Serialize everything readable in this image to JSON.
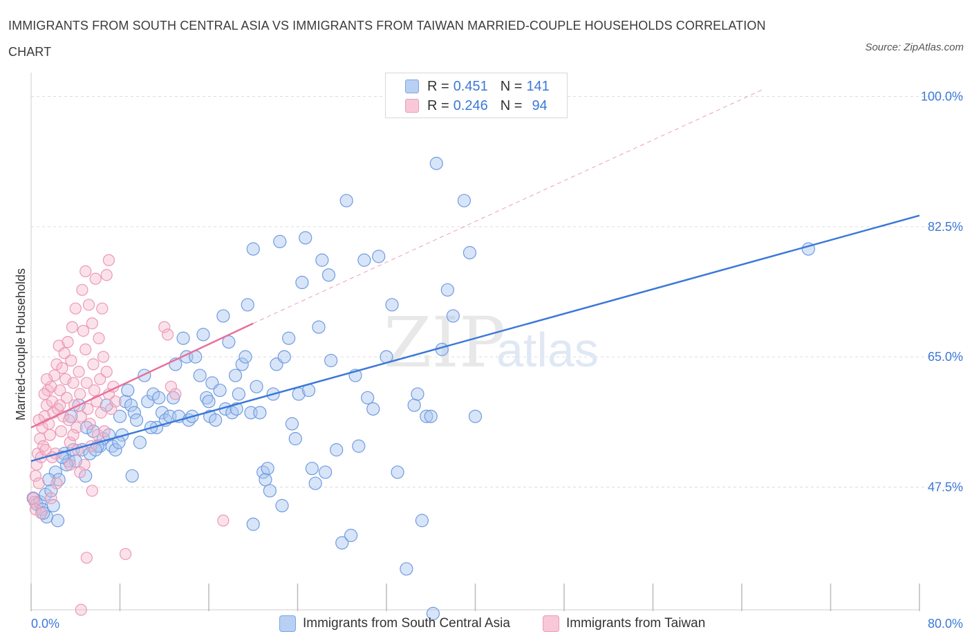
{
  "title": "IMMIGRANTS FROM SOUTH CENTRAL ASIA VS IMMIGRANTS FROM TAIWAN MARRIED-COUPLE HOUSEHOLDS CORRELATION CHART",
  "source": "Source: ZipAtlas.com",
  "watermark": {
    "zip": "ZIP",
    "atlas": "atlas"
  },
  "legend": {
    "r_label": "R =",
    "n_label": "N =",
    "items": [
      {
        "r": "0.451",
        "n": "141",
        "color": "#a8c6f0"
      },
      {
        "r": "0.246",
        "n": "94",
        "color": "#f5b6ca"
      }
    ]
  },
  "series_names": [
    "Immigrants from South Central Asia",
    "Immigrants from Taiwan"
  ],
  "colors": {
    "blue": "#3b78d8",
    "blue_fill": "#a8c6f0",
    "pink": "#e8709a",
    "pink_fill": "#f5b6ca"
  },
  "chart_data": {
    "type": "scatter",
    "xlabel": "",
    "ylabel": "Married-couple Households",
    "xlim": [
      0,
      80
    ],
    "ylim": [
      31,
      102
    ],
    "x_tick_labels": [
      "0.0%",
      "80.0%"
    ],
    "y_ticks": [
      47.5,
      65.0,
      82.5,
      100.0
    ],
    "y_tick_labels": [
      "47.5%",
      "65.0%",
      "82.5%",
      "100.0%"
    ],
    "grid": true,
    "series": [
      {
        "name": "Immigrants from South Central Asia",
        "color": "#3b78d8",
        "trend": [
          [
            0,
            51.0
          ],
          [
            80,
            84.0
          ]
        ],
        "points": [
          [
            0.2,
            46.0
          ],
          [
            0.5,
            45.2
          ],
          [
            0.8,
            45.5
          ],
          [
            1.0,
            44.5
          ],
          [
            1.3,
            46.5
          ],
          [
            1.4,
            43.5
          ],
          [
            1.8,
            47.0
          ],
          [
            2.0,
            45.0
          ],
          [
            2.2,
            49.5
          ],
          [
            2.5,
            48.5
          ],
          [
            3.0,
            52.0
          ],
          [
            3.4,
            51.0
          ],
          [
            3.8,
            52.5
          ],
          [
            4.0,
            51.0
          ],
          [
            4.3,
            58.5
          ],
          [
            4.6,
            52.5
          ],
          [
            5.0,
            55.5
          ],
          [
            5.3,
            52.0
          ],
          [
            5.6,
            55.0
          ],
          [
            6.2,
            53.0
          ],
          [
            6.5,
            54.0
          ],
          [
            6.8,
            58.5
          ],
          [
            7.0,
            54.5
          ],
          [
            7.3,
            53.0
          ],
          [
            7.6,
            52.5
          ],
          [
            8.0,
            57.0
          ],
          [
            8.5,
            59.0
          ],
          [
            8.7,
            60.5
          ],
          [
            9.0,
            58.5
          ],
          [
            9.3,
            57.5
          ],
          [
            9.5,
            56.5
          ],
          [
            9.8,
            53.5
          ],
          [
            10.2,
            62.5
          ],
          [
            10.5,
            59.0
          ],
          [
            11.0,
            60.0
          ],
          [
            11.3,
            55.5
          ],
          [
            11.8,
            57.5
          ],
          [
            12.1,
            56.5
          ],
          [
            12.5,
            57.0
          ],
          [
            13.0,
            64.0
          ],
          [
            13.3,
            57.0
          ],
          [
            13.7,
            67.5
          ],
          [
            14.0,
            65.0
          ],
          [
            14.2,
            56.5
          ],
          [
            14.5,
            57.0
          ],
          [
            14.8,
            65.0
          ],
          [
            15.2,
            62.5
          ],
          [
            15.5,
            68.0
          ],
          [
            15.8,
            59.5
          ],
          [
            16.1,
            57.0
          ],
          [
            16.3,
            61.5
          ],
          [
            16.6,
            56.5
          ],
          [
            17.0,
            60.5
          ],
          [
            17.3,
            70.5
          ],
          [
            17.5,
            58.0
          ],
          [
            17.8,
            67.0
          ],
          [
            18.1,
            57.5
          ],
          [
            18.4,
            62.5
          ],
          [
            18.7,
            60.0
          ],
          [
            19.0,
            64.0
          ],
          [
            19.3,
            65.0
          ],
          [
            19.5,
            72.0
          ],
          [
            19.8,
            57.5
          ],
          [
            20.0,
            79.5
          ],
          [
            20.3,
            61.0
          ],
          [
            20.6,
            57.5
          ],
          [
            20.9,
            49.5
          ],
          [
            21.1,
            48.5
          ],
          [
            21.3,
            50.0
          ],
          [
            21.5,
            47.0
          ],
          [
            21.8,
            60.0
          ],
          [
            22.1,
            64.0
          ],
          [
            22.4,
            80.5
          ],
          [
            22.6,
            45.0
          ],
          [
            22.8,
            65.0
          ],
          [
            23.2,
            67.5
          ],
          [
            23.5,
            56.0
          ],
          [
            23.8,
            54.0
          ],
          [
            24.1,
            60.0
          ],
          [
            24.4,
            75.0
          ],
          [
            24.7,
            81.0
          ],
          [
            25.0,
            60.5
          ],
          [
            25.3,
            50.0
          ],
          [
            25.6,
            48.0
          ],
          [
            25.9,
            69.0
          ],
          [
            26.2,
            78.0
          ],
          [
            26.5,
            49.5
          ],
          [
            26.8,
            76.0
          ],
          [
            27.0,
            64.5
          ],
          [
            27.5,
            52.5
          ],
          [
            28.0,
            40.0
          ],
          [
            28.4,
            86.0
          ],
          [
            28.8,
            41.0
          ],
          [
            29.2,
            62.5
          ],
          [
            29.5,
            53.0
          ],
          [
            30.0,
            78.0
          ],
          [
            30.3,
            59.5
          ],
          [
            30.8,
            58.0
          ],
          [
            31.3,
            78.5
          ],
          [
            32.0,
            65.0
          ],
          [
            32.5,
            72.0
          ],
          [
            33.0,
            49.5
          ],
          [
            33.8,
            36.5
          ],
          [
            34.5,
            58.5
          ],
          [
            34.8,
            60.0
          ],
          [
            35.2,
            43.0
          ],
          [
            35.6,
            57.0
          ],
          [
            36.0,
            57.0
          ],
          [
            36.5,
            91.0
          ],
          [
            37.0,
            66.0
          ],
          [
            37.5,
            74.0
          ],
          [
            38.0,
            70.5
          ],
          [
            39.0,
            86.0
          ],
          [
            39.5,
            79.0
          ],
          [
            40.0,
            57.0
          ],
          [
            18.5,
            58.0
          ],
          [
            16.0,
            59.0
          ],
          [
            12.8,
            59.5
          ],
          [
            11.5,
            59.5
          ],
          [
            10.8,
            55.5
          ],
          [
            8.2,
            54.5
          ],
          [
            7.9,
            53.5
          ],
          [
            6.0,
            53.0
          ],
          [
            5.8,
            52.5
          ],
          [
            3.2,
            50.5
          ],
          [
            2.8,
            51.5
          ],
          [
            1.6,
            48.5
          ],
          [
            1.1,
            44.0
          ],
          [
            2.4,
            43.0
          ],
          [
            3.6,
            57.0
          ],
          [
            9.1,
            49.0
          ],
          [
            4.9,
            49.0
          ],
          [
            20.0,
            42.5
          ],
          [
            36.2,
            30.5
          ],
          [
            70.0,
            79.5
          ]
        ]
      },
      {
        "name": "Immigrants from Taiwan",
        "color": "#e8709a",
        "trend": [
          [
            0,
            55.5
          ],
          [
            20,
            69.5
          ]
        ],
        "trend_extension": [
          [
            20,
            69.5
          ],
          [
            66,
            101.0
          ]
        ],
        "points": [
          [
            0.2,
            46.0
          ],
          [
            0.3,
            45.5
          ],
          [
            0.4,
            49.0
          ],
          [
            0.5,
            50.5
          ],
          [
            0.6,
            52.0
          ],
          [
            0.7,
            48.0
          ],
          [
            0.8,
            54.0
          ],
          [
            0.9,
            51.5
          ],
          [
            1.0,
            55.5
          ],
          [
            1.1,
            53.0
          ],
          [
            1.2,
            57.0
          ],
          [
            1.3,
            52.5
          ],
          [
            1.4,
            58.5
          ],
          [
            1.5,
            60.5
          ],
          [
            1.6,
            56.0
          ],
          [
            1.7,
            54.5
          ],
          [
            1.8,
            61.0
          ],
          [
            1.9,
            59.0
          ],
          [
            2.0,
            57.5
          ],
          [
            2.1,
            62.5
          ],
          [
            2.2,
            52.0
          ],
          [
            2.3,
            64.0
          ],
          [
            2.4,
            58.0
          ],
          [
            2.5,
            66.5
          ],
          [
            2.6,
            60.5
          ],
          [
            2.7,
            55.0
          ],
          [
            2.8,
            63.5
          ],
          [
            2.9,
            57.0
          ],
          [
            3.0,
            65.5
          ],
          [
            3.1,
            62.0
          ],
          [
            3.2,
            59.5
          ],
          [
            3.3,
            67.0
          ],
          [
            3.4,
            56.5
          ],
          [
            3.5,
            53.5
          ],
          [
            3.6,
            64.5
          ],
          [
            3.7,
            69.0
          ],
          [
            3.8,
            61.5
          ],
          [
            3.9,
            58.5
          ],
          [
            4.0,
            71.5
          ],
          [
            4.1,
            55.5
          ],
          [
            4.2,
            52.5
          ],
          [
            4.3,
            63.0
          ],
          [
            4.4,
            60.0
          ],
          [
            4.5,
            57.0
          ],
          [
            4.6,
            74.0
          ],
          [
            4.7,
            68.5
          ],
          [
            4.8,
            50.5
          ],
          [
            4.9,
            66.0
          ],
          [
            5.0,
            61.5
          ],
          [
            5.1,
            58.0
          ],
          [
            5.2,
            72.0
          ],
          [
            5.3,
            56.0
          ],
          [
            5.4,
            53.0
          ],
          [
            5.5,
            69.5
          ],
          [
            5.6,
            64.0
          ],
          [
            5.7,
            60.5
          ],
          [
            5.8,
            75.5
          ],
          [
            5.9,
            59.0
          ],
          [
            6.0,
            54.5
          ],
          [
            6.1,
            67.5
          ],
          [
            6.2,
            62.0
          ],
          [
            6.3,
            57.5
          ],
          [
            6.4,
            71.5
          ],
          [
            6.5,
            65.0
          ],
          [
            6.6,
            55.0
          ],
          [
            6.8,
            63.0
          ],
          [
            7.0,
            60.0
          ],
          [
            7.2,
            58.0
          ],
          [
            7.4,
            61.0
          ],
          [
            7.6,
            59.0
          ],
          [
            12.0,
            69.0
          ],
          [
            12.3,
            68.0
          ],
          [
            12.6,
            61.0
          ],
          [
            13.0,
            60.0
          ],
          [
            17.3,
            43.0
          ],
          [
            4.9,
            76.5
          ],
          [
            7.0,
            78.0
          ],
          [
            6.8,
            76.0
          ],
          [
            5.0,
            38.0
          ],
          [
            4.5,
            31.0
          ],
          [
            8.5,
            38.5
          ],
          [
            2.3,
            48.0
          ],
          [
            0.4,
            44.5
          ],
          [
            1.8,
            46.0
          ],
          [
            0.9,
            44.0
          ],
          [
            3.5,
            50.5
          ],
          [
            5.5,
            47.0
          ],
          [
            1.2,
            60.0
          ],
          [
            0.7,
            56.5
          ],
          [
            1.4,
            62.0
          ],
          [
            2.6,
            58.5
          ],
          [
            3.8,
            54.5
          ],
          [
            4.4,
            49.5
          ],
          [
            1.9,
            51.5
          ]
        ]
      }
    ]
  }
}
